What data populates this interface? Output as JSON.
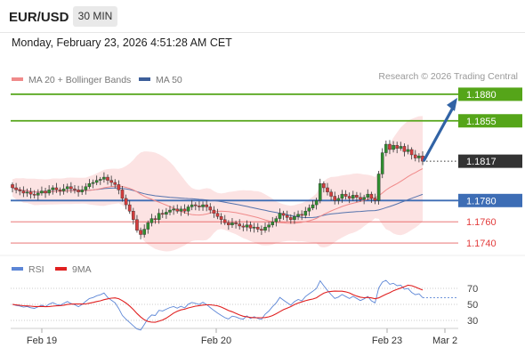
{
  "header": {
    "symbol": "EUR/USD",
    "timeframe": "30 MIN",
    "timestamp": "Monday, February 23, 2026 4:51:28 AM CET"
  },
  "legend": {
    "ma20": "MA 20 + Bollinger Bands",
    "ma50": "MA 50",
    "credit": "Research © 2026 Trading Central",
    "rsi": "RSI",
    "ma9": "9MA"
  },
  "colors": {
    "green": "#55a519",
    "blue": "#3d6db5",
    "red": "#e23c3c",
    "dark": "#333333",
    "band": "#fbdede",
    "candle_up": "#2f8e2f",
    "candle_down": "#d43c3c",
    "arrow": "#3163a5"
  },
  "chart_data": [
    {
      "type": "candlestick",
      "title": "",
      "y_range": [
        1.173,
        1.1895
      ],
      "x_ticks": [
        "Feb 19",
        "Feb 20",
        "Feb 23",
        "Mar 2"
      ],
      "levels": [
        {
          "label": "1.1880",
          "value": 1.188,
          "style": "resistance",
          "color": "#55a519"
        },
        {
          "label": "1.1855",
          "value": 1.1855,
          "style": "resistance",
          "color": "#55a519"
        },
        {
          "label": "1.1817",
          "value": 1.1817,
          "style": "last-price",
          "color": "#333333"
        },
        {
          "label": "1.1780",
          "value": 1.178,
          "style": "pivot",
          "color": "#3d6db5"
        },
        {
          "label": "1.1760",
          "value": 1.176,
          "style": "support",
          "color": "#e23c3c"
        },
        {
          "label": "1.1740",
          "value": 1.174,
          "style": "support",
          "color": "#e23c3c"
        }
      ],
      "closes": [
        1.1792,
        1.179,
        1.1789,
        1.1787,
        1.1788,
        1.1786,
        1.1785,
        1.1787,
        1.1789,
        1.1787,
        1.179,
        1.1792,
        1.179,
        1.1789,
        1.1791,
        1.1793,
        1.1791,
        1.179,
        1.1788,
        1.179,
        1.1793,
        1.1796,
        1.1797,
        1.1799,
        1.18,
        1.1802,
        1.1799,
        1.1797,
        1.1795,
        1.179,
        1.1782,
        1.1776,
        1.177,
        1.1762,
        1.1752,
        1.1748,
        1.1753,
        1.1759,
        1.1763,
        1.1762,
        1.1768,
        1.1767,
        1.1769,
        1.1771,
        1.1772,
        1.177,
        1.1772,
        1.177,
        1.1774,
        1.1776,
        1.1775,
        1.1774,
        1.1776,
        1.1774,
        1.1771,
        1.1768,
        1.1765,
        1.1762,
        1.1759,
        1.1757,
        1.1759,
        1.1758,
        1.1756,
        1.1755,
        1.1757,
        1.1754,
        1.1755,
        1.1753,
        1.1752,
        1.1755,
        1.1757,
        1.176,
        1.1763,
        1.1768,
        1.1766,
        1.1764,
        1.1762,
        1.1765,
        1.1767,
        1.1766,
        1.177,
        1.1773,
        1.1776,
        1.178,
        1.1796,
        1.1792,
        1.1788,
        1.1784,
        1.178,
        1.1782,
        1.1786,
        1.1784,
        1.1782,
        1.1785,
        1.1783,
        1.1781,
        1.1783,
        1.1786,
        1.1782,
        1.178,
        1.1805,
        1.1825,
        1.1833,
        1.1828,
        1.1832,
        1.1829,
        1.1831,
        1.1826,
        1.1828,
        1.1823,
        1.182,
        1.1822,
        1.1817
      ],
      "ma20_period": 20,
      "ma50_period": 50,
      "bollinger_width": "2 sd",
      "forecast": {
        "from": 1.1817,
        "to": 1.188
      }
    },
    {
      "type": "line",
      "title": "",
      "y_range": [
        20,
        80
      ],
      "y_ticks": [
        "70",
        "50",
        "30"
      ],
      "series": [
        {
          "name": "RSI",
          "color": "#3d6db5"
        },
        {
          "name": "9MA",
          "color": "#e23c3c"
        }
      ]
    }
  ]
}
